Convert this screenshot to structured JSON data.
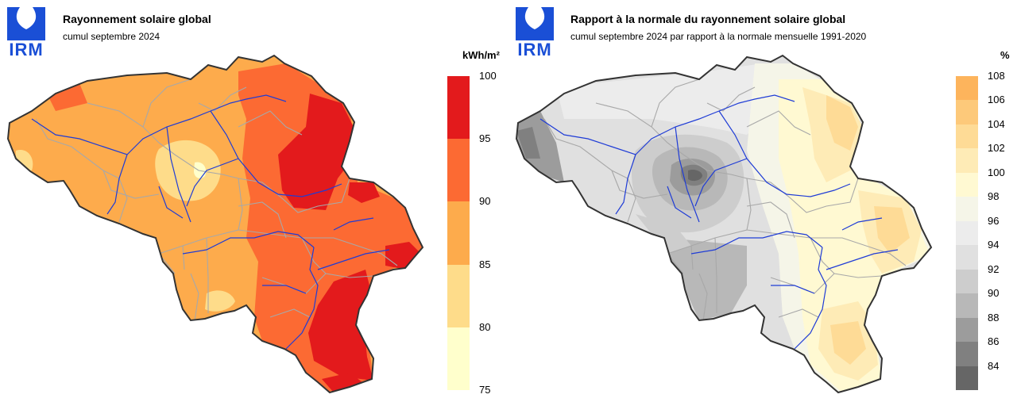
{
  "left": {
    "logo_text": "IRM",
    "title": "Rayonnement solaire global",
    "subtitle": "cumul septembre 2024",
    "legend": {
      "unit": "kWh/m²",
      "ticks": [
        "100",
        "95",
        "90",
        "85",
        "80",
        "75"
      ],
      "colors": [
        "#e31a1c",
        "#fc6a33",
        "#fdab4c",
        "#fedc8a",
        "#ffffcc"
      ]
    }
  },
  "right": {
    "logo_text": "IRM",
    "title": "Rapport à la normale du rayonnement solaire global",
    "subtitle": "cumul septembre 2024 par rapport à la normale mensuelle 1991-2020",
    "legend": {
      "unit": "%",
      "ticks": [
        "108",
        "106",
        "104",
        "102",
        "100",
        "98",
        "96",
        "94",
        "92",
        "90",
        "88",
        "86",
        "84"
      ],
      "colors": [
        "#fdb45c",
        "#fdc97a",
        "#fedb96",
        "#feebb6",
        "#fff9d2",
        "#f5f5e8",
        "#ececec",
        "#e0e0e0",
        "#cdcdcd",
        "#b8b8b8",
        "#9c9c9c",
        "#808080",
        "#666666"
      ]
    }
  }
}
